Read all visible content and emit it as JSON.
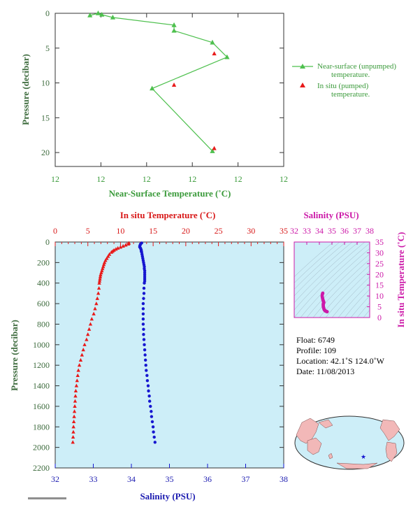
{
  "colors": {
    "near_surface": "#4ec04e",
    "in_situ_red": "#e81a1a",
    "salinity_blue": "#1616d0",
    "inset_magenta": "#cc1aa8",
    "panel_fill": "#cdeef8",
    "axis_text": "#3d6b3d"
  },
  "chart_data": [
    {
      "id": "near_surface_profile",
      "type": "line",
      "xlabel": "Near-Surface Temperature (˚C)",
      "ylabel": "Pressure (decibar)",
      "x_tick_labels": [
        "12",
        "12",
        "12",
        "12",
        "12",
        "12"
      ],
      "y_ticks": [
        0,
        5,
        10,
        15,
        20
      ],
      "ylim": [
        0,
        22
      ],
      "legend_position": "right",
      "series": [
        {
          "name": "Near-surface (unpumped) temperature.",
          "marker": "triangle",
          "line": true,
          "points": [
            {
              "x": 0.38,
              "y": 0.3
            },
            {
              "x": 0.47,
              "y": 0.0
            },
            {
              "x": 0.51,
              "y": 0.2
            },
            {
              "x": 0.63,
              "y": 0.6
            },
            {
              "x": 1.3,
              "y": 1.7
            },
            {
              "x": 1.3,
              "y": 2.5
            },
            {
              "x": 1.72,
              "y": 4.2
            },
            {
              "x": 1.88,
              "y": 6.3
            },
            {
              "x": 1.06,
              "y": 10.8
            },
            {
              "x": 1.72,
              "y": 19.8
            }
          ]
        },
        {
          "name": "In situ (pumped) temperature.",
          "marker": "triangle",
          "line": false,
          "points": [
            {
              "x": 1.74,
              "y": 5.8
            },
            {
              "x": 1.3,
              "y": 10.3
            },
            {
              "x": 1.74,
              "y": 19.4
            }
          ]
        }
      ],
      "legend": [
        "Near-surface (unpumped) temperature.",
        "In situ (pumped) temperature."
      ]
    },
    {
      "id": "profile",
      "type": "scatter",
      "ylabel": "Pressure (decibar)",
      "y_ticks": [
        0,
        200,
        400,
        600,
        800,
        1000,
        1200,
        1400,
        1600,
        1800,
        2000,
        2200
      ],
      "ylim": [
        0,
        2200
      ],
      "temperature_axis": {
        "label": "In situ Temperature (˚C)",
        "ticks": [
          0,
          5,
          10,
          15,
          20,
          25,
          30,
          35
        ],
        "range": [
          0,
          35
        ]
      },
      "salinity_axis": {
        "label": "Salinity (PSU)",
        "ticks": [
          32,
          33,
          34,
          35,
          36,
          37,
          38
        ],
        "range": [
          32,
          38
        ]
      },
      "temperature_series": {
        "name": "In situ Temperature",
        "pressure": [
          10,
          20,
          30,
          40,
          50,
          60,
          70,
          80,
          90,
          100,
          120,
          140,
          160,
          180,
          200,
          220,
          240,
          260,
          280,
          300,
          320,
          340,
          360,
          380,
          400,
          450,
          500,
          550,
          600,
          650,
          700,
          750,
          800,
          850,
          900,
          950,
          1000,
          1050,
          1100,
          1150,
          1200,
          1250,
          1300,
          1350,
          1400,
          1450,
          1500,
          1550,
          1600,
          1650,
          1700,
          1750,
          1800,
          1850,
          1900,
          1950
        ],
        "values": [
          11.3,
          11.2,
          10.8,
          10.4,
          10.0,
          9.6,
          9.3,
          9.0,
          8.8,
          8.6,
          8.3,
          8.1,
          7.9,
          7.7,
          7.55,
          7.45,
          7.35,
          7.25,
          7.15,
          7.05,
          6.95,
          6.9,
          6.85,
          6.8,
          6.75,
          6.7,
          6.6,
          6.45,
          6.3,
          6.1,
          5.9,
          5.6,
          5.4,
          5.2,
          5.0,
          4.8,
          4.5,
          4.3,
          4.1,
          3.9,
          3.7,
          3.55,
          3.45,
          3.35,
          3.25,
          3.15,
          3.1,
          3.05,
          3.0,
          2.95,
          2.9,
          2.85,
          2.8,
          2.78,
          2.74,
          2.7
        ]
      },
      "salinity_series": {
        "name": "Salinity",
        "pressure": [
          10,
          20,
          30,
          40,
          50,
          60,
          70,
          80,
          90,
          100,
          120,
          140,
          160,
          180,
          200,
          220,
          240,
          260,
          280,
          300,
          320,
          340,
          360,
          380,
          400,
          450,
          500,
          550,
          600,
          650,
          700,
          750,
          800,
          850,
          900,
          950,
          1000,
          1050,
          1100,
          1150,
          1200,
          1250,
          1300,
          1350,
          1400,
          1450,
          1500,
          1550,
          1600,
          1650,
          1700,
          1750,
          1800,
          1850,
          1900,
          1950
        ],
        "values": [
          34.27,
          34.24,
          34.23,
          34.22,
          34.22,
          34.24,
          34.25,
          34.26,
          34.26,
          34.27,
          34.28,
          34.29,
          34.3,
          34.31,
          34.32,
          34.33,
          34.34,
          34.34,
          34.35,
          34.35,
          34.35,
          34.35,
          34.35,
          34.35,
          34.34,
          34.33,
          34.33,
          34.32,
          34.31,
          34.31,
          34.31,
          34.31,
          34.31,
          34.32,
          34.32,
          34.33,
          34.34,
          34.35,
          34.36,
          34.37,
          34.38,
          34.39,
          34.41,
          34.42,
          34.44,
          34.45,
          34.47,
          34.48,
          34.5,
          34.52,
          34.53,
          34.55,
          34.57,
          34.58,
          34.6,
          34.62
        ]
      }
    },
    {
      "id": "ts_inset",
      "type": "scatter",
      "xlabel": "Salinity (PSU)",
      "ylabel": "In situ Temperature (˚C)",
      "x_ticks": [
        32,
        33,
        34,
        35,
        36,
        37,
        38
      ],
      "y_ticks": [
        0,
        5,
        10,
        15,
        20,
        25,
        30,
        35
      ],
      "xlim": [
        32,
        38
      ],
      "ylim": [
        0,
        35
      ],
      "points": [
        {
          "x": 34.27,
          "y": 11.3
        },
        {
          "x": 34.24,
          "y": 10.8
        },
        {
          "x": 34.22,
          "y": 10.0
        },
        {
          "x": 34.24,
          "y": 9.3
        },
        {
          "x": 34.26,
          "y": 8.8
        },
        {
          "x": 34.28,
          "y": 8.3
        },
        {
          "x": 34.3,
          "y": 7.9
        },
        {
          "x": 34.32,
          "y": 7.55
        },
        {
          "x": 34.34,
          "y": 7.35
        },
        {
          "x": 34.35,
          "y": 7.05
        },
        {
          "x": 34.35,
          "y": 6.85
        },
        {
          "x": 34.34,
          "y": 6.75
        },
        {
          "x": 34.33,
          "y": 6.6
        },
        {
          "x": 34.31,
          "y": 6.3
        },
        {
          "x": 34.31,
          "y": 5.9
        },
        {
          "x": 34.31,
          "y": 5.4
        },
        {
          "x": 34.32,
          "y": 5.0
        },
        {
          "x": 34.34,
          "y": 4.5
        },
        {
          "x": 34.36,
          "y": 4.1
        },
        {
          "x": 34.38,
          "y": 3.7
        },
        {
          "x": 34.41,
          "y": 3.45
        },
        {
          "x": 34.44,
          "y": 3.25
        },
        {
          "x": 34.47,
          "y": 3.1
        },
        {
          "x": 34.5,
          "y": 3.0
        },
        {
          "x": 34.53,
          "y": 2.9
        },
        {
          "x": 34.57,
          "y": 2.8
        },
        {
          "x": 34.6,
          "y": 2.74
        },
        {
          "x": 34.62,
          "y": 2.7
        }
      ]
    }
  ],
  "info": {
    "float": "Float:  6749",
    "profile": "Profile:  109",
    "location": "Location:  42.1˚S  124.0˚W",
    "date": "Date:  11/08/2013"
  },
  "map": {
    "marker": "star",
    "float_lat": -42.1,
    "float_lon": -124.0
  }
}
